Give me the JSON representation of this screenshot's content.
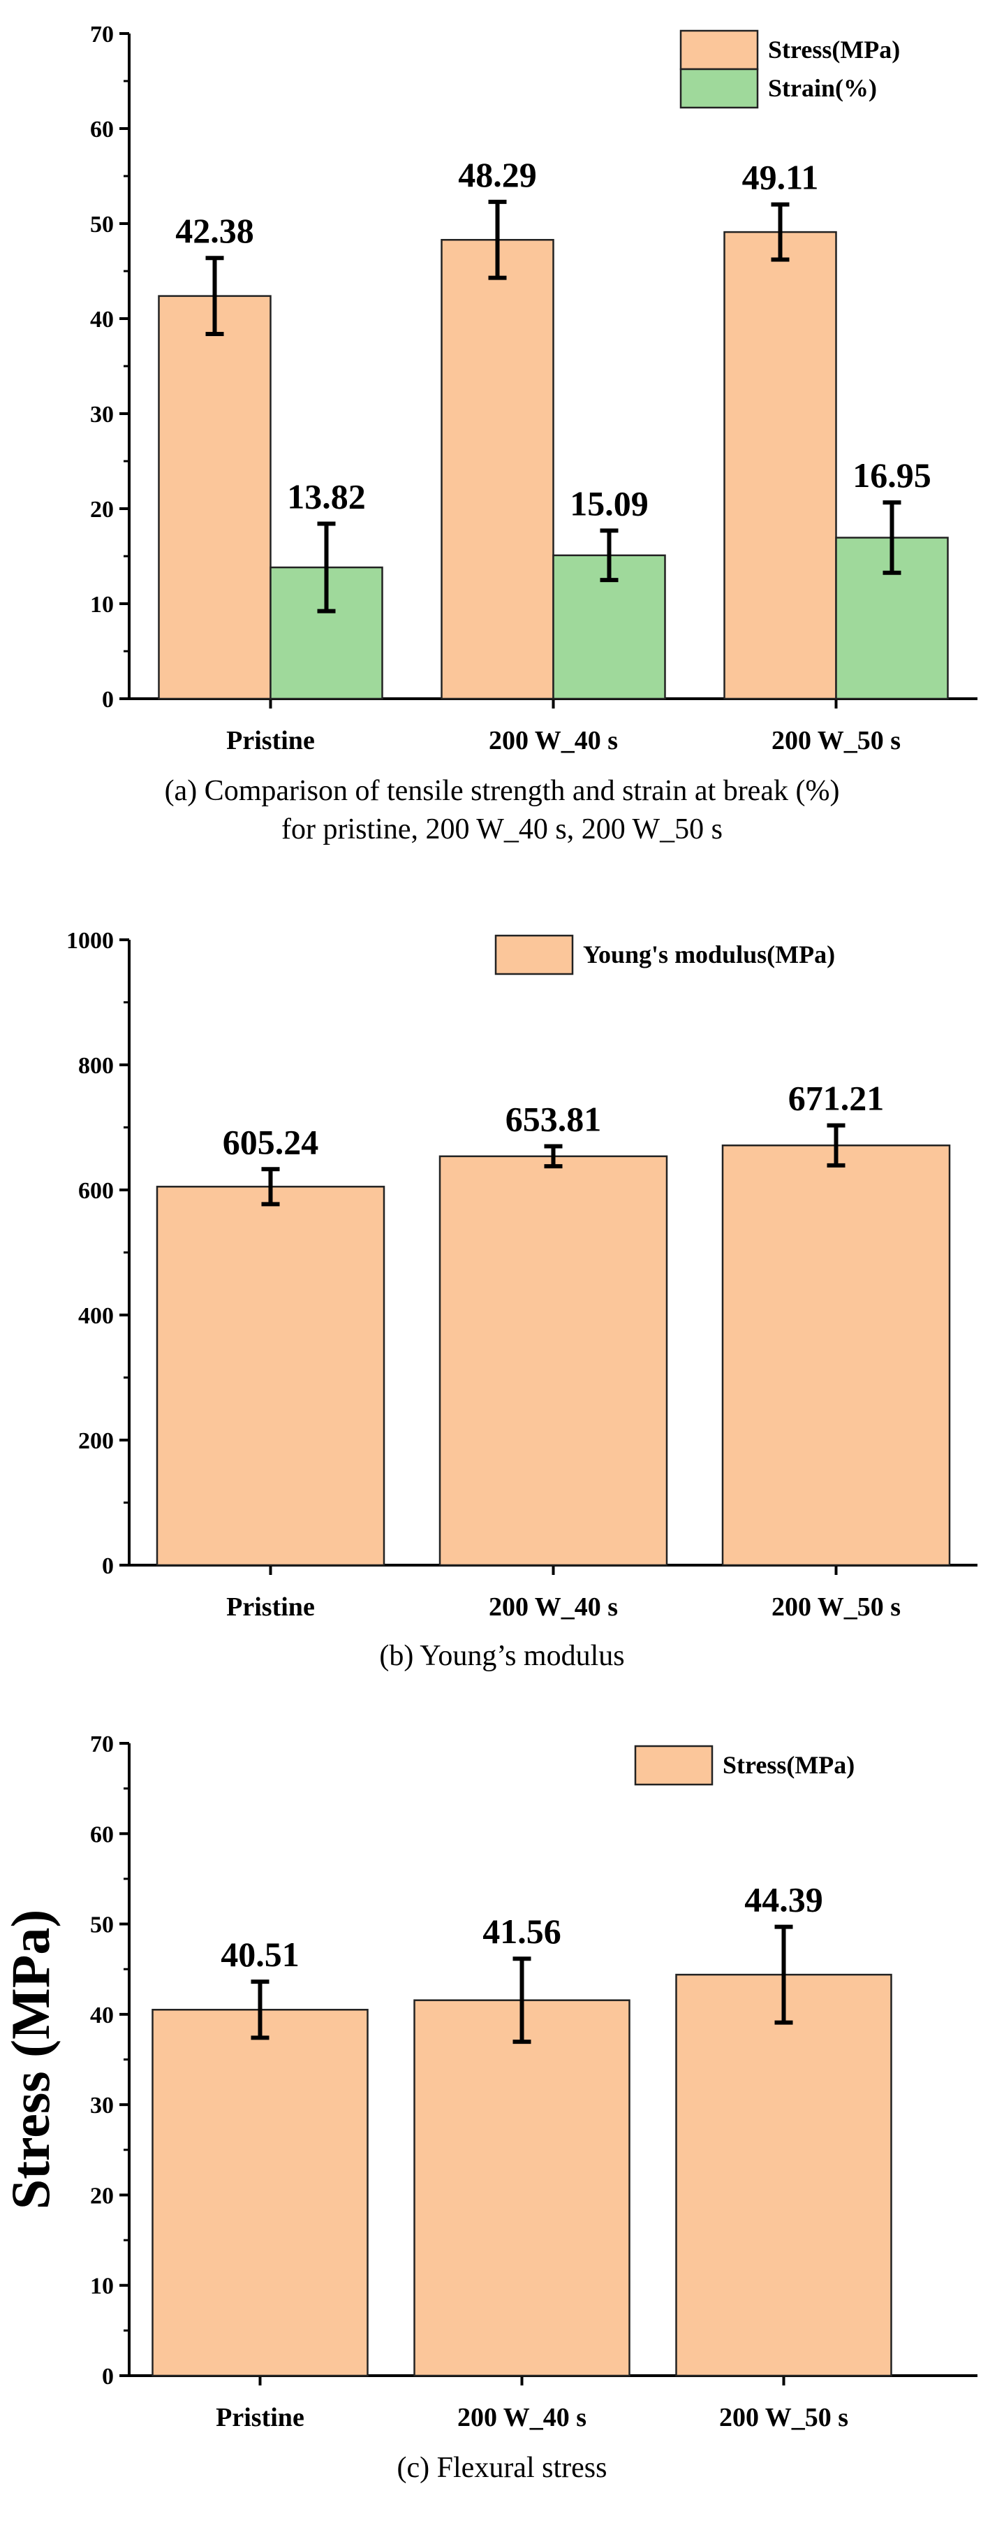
{
  "chart_data": [
    {
      "type": "bar",
      "caption": "(a) Comparison of tensile strength and strain at break (%) for pristine, 200 W_40 s, 200 W_50 s",
      "caption_lines": [
        "(a) Comparison of tensile strength and strain at break (%)",
        "for pristine, 200 W_40 s, 200 W_50 s"
      ],
      "categories": [
        "Pristine",
        "200 W_40 s",
        "200 W_50 s"
      ],
      "ylim": [
        0,
        70
      ],
      "yticks": [
        0,
        10,
        20,
        30,
        40,
        50,
        60,
        70
      ],
      "ylabel": "",
      "legend_position": "top-right",
      "series": [
        {
          "name": "Stress(MPa)",
          "color": "#fbc69a",
          "values": [
            42.38,
            48.29,
            49.11
          ],
          "errors": [
            4.0,
            4.0,
            2.9
          ],
          "labels": [
            "42.38",
            "48.29",
            "49.11"
          ]
        },
        {
          "name": "Strain(%)",
          "color": "#9fd99b",
          "values": [
            13.82,
            15.09,
            16.95
          ],
          "errors": [
            4.6,
            2.6,
            3.7
          ],
          "labels": [
            "13.82",
            "15.09",
            "16.95"
          ]
        }
      ]
    },
    {
      "type": "bar",
      "caption": "(b) Young’s modulus",
      "caption_lines": [
        "(b) Young’s modulus"
      ],
      "categories": [
        "Pristine",
        "200 W_40 s",
        "200 W_50 s"
      ],
      "ylim": [
        0,
        1000
      ],
      "yticks": [
        0,
        200,
        400,
        600,
        800,
        1000
      ],
      "ylabel": "",
      "legend_position": "top-right",
      "series": [
        {
          "name": "Young's modulus(MPa)",
          "color": "#fbc69a",
          "values": [
            605.24,
            653.81,
            671.21
          ],
          "errors": [
            28,
            16,
            32
          ],
          "labels": [
            "605.24",
            "653.81",
            "671.21"
          ]
        }
      ]
    },
    {
      "type": "bar",
      "caption": "(c) Flexural stress",
      "caption_lines": [
        "(c) Flexural stress"
      ],
      "categories": [
        "Pristine",
        "200 W_40 s",
        "200 W_50 s"
      ],
      "ylim": [
        0,
        70
      ],
      "yticks": [
        0,
        10,
        20,
        30,
        40,
        50,
        60,
        70
      ],
      "ylabel": "Stress (MPa)",
      "legend_position": "top-right",
      "series": [
        {
          "name": "Stress(MPa)",
          "color": "#fbc69a",
          "values": [
            40.51,
            41.56,
            44.39
          ],
          "errors": [
            3.1,
            4.6,
            5.3
          ],
          "labels": [
            "40.51",
            "41.56",
            "44.39"
          ]
        }
      ]
    }
  ]
}
